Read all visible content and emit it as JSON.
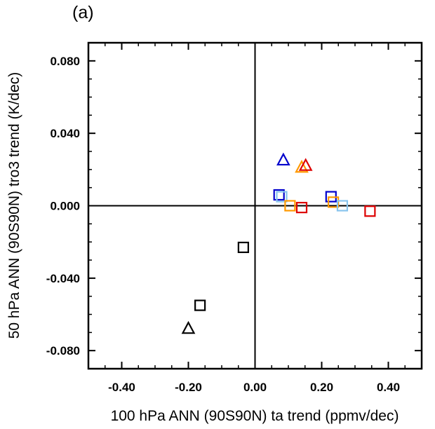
{
  "chart_data": {
    "type": "scatter",
    "panel_label": "(a)",
    "xlabel": "100 hPa ANN (90S90N) ta trend (ppmv/dec)",
    "ylabel": "50 hPa ANN (90S90N) tro3 trend (K/dec)",
    "xlim": [
      -0.5,
      0.5
    ],
    "ylim": [
      -0.09,
      0.09
    ],
    "x_ticks": [
      -0.4,
      -0.2,
      0.0,
      0.2,
      0.4
    ],
    "x_tick_labels": [
      "-0.40",
      "-0.20",
      "0.00",
      "0.20",
      "0.40"
    ],
    "y_ticks": [
      -0.08,
      -0.04,
      0.0,
      0.04,
      0.08
    ],
    "y_tick_labels": [
      "-0.080",
      "-0.040",
      "0.000",
      "0.040",
      "0.080"
    ],
    "zero_lines": true,
    "grid": false,
    "legend": "none",
    "points": [
      {
        "x": 0.085,
        "y": 0.025,
        "marker": "triangle",
        "color": "#0000cc"
      },
      {
        "x": 0.14,
        "y": 0.021,
        "marker": "triangle",
        "color": "#ff9900"
      },
      {
        "x": 0.152,
        "y": 0.022,
        "marker": "triangle",
        "color": "#dd0000"
      },
      {
        "x": -0.2,
        "y": -0.068,
        "marker": "triangle",
        "color": "#000000"
      },
      {
        "x": 0.072,
        "y": 0.006,
        "marker": "square",
        "color": "#0000cc"
      },
      {
        "x": 0.08,
        "y": 0.005,
        "marker": "square",
        "color": "#88c4ee"
      },
      {
        "x": 0.105,
        "y": 0.0,
        "marker": "square",
        "color": "#ff9900"
      },
      {
        "x": 0.14,
        "y": -0.001,
        "marker": "square",
        "color": "#dd0000"
      },
      {
        "x": 0.228,
        "y": 0.005,
        "marker": "square",
        "color": "#0000cc"
      },
      {
        "x": 0.235,
        "y": 0.002,
        "marker": "square",
        "color": "#ff9900"
      },
      {
        "x": 0.262,
        "y": 0.0,
        "marker": "square",
        "color": "#88c4ee"
      },
      {
        "x": 0.345,
        "y": -0.003,
        "marker": "square",
        "color": "#dd0000"
      },
      {
        "x": -0.035,
        "y": -0.023,
        "marker": "square",
        "color": "#000000"
      },
      {
        "x": -0.165,
        "y": -0.055,
        "marker": "square",
        "color": "#000000"
      }
    ]
  }
}
